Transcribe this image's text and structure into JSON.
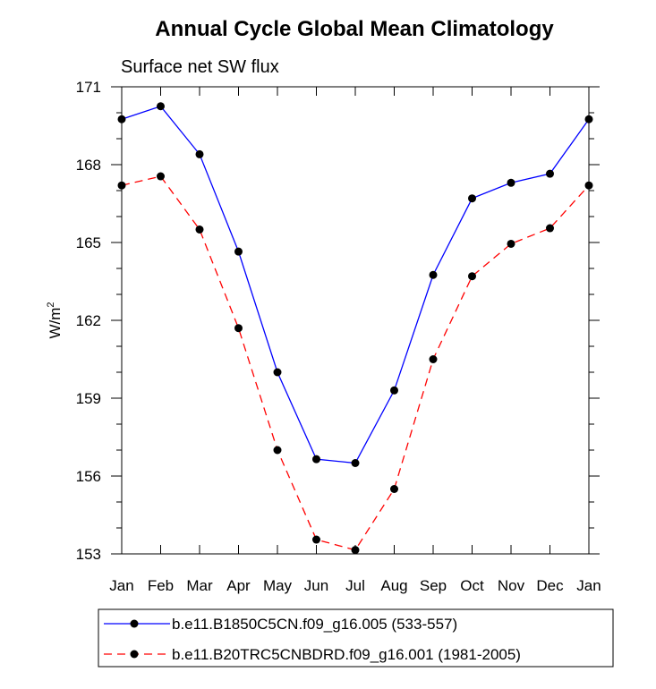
{
  "chart_data": {
    "type": "line",
    "title": "Annual Cycle Global Mean Climatology",
    "subtitle": "Surface net SW flux",
    "ylabel_base": "W/m",
    "ylabel_sup": "2",
    "xlabel": "",
    "categories": [
      "Jan",
      "Feb",
      "Mar",
      "Apr",
      "May",
      "Jun",
      "Jul",
      "Aug",
      "Sep",
      "Oct",
      "Nov",
      "Dec",
      "Jan"
    ],
    "ylim": [
      153,
      171
    ],
    "yticks": [
      153,
      156,
      159,
      162,
      165,
      168,
      171
    ],
    "grid": false,
    "legend_position": "bottom",
    "series": [
      {
        "name": "b.e11.B1850C5CN.f09_g16.005 (533-557)",
        "color": "#0000ff",
        "dash": "solid",
        "values": [
          169.75,
          170.25,
          168.4,
          164.65,
          160.0,
          156.65,
          156.5,
          159.3,
          163.75,
          166.7,
          167.3,
          167.65,
          169.75
        ]
      },
      {
        "name": "b.e11.B20TRC5CNBDRD.f09_g16.001 (1981-2005)",
        "color": "#ff0000",
        "dash": "dashed",
        "values": [
          167.2,
          167.55,
          165.5,
          161.7,
          157.0,
          153.55,
          153.15,
          155.5,
          160.5,
          163.7,
          164.95,
          165.55,
          167.2
        ]
      }
    ]
  }
}
